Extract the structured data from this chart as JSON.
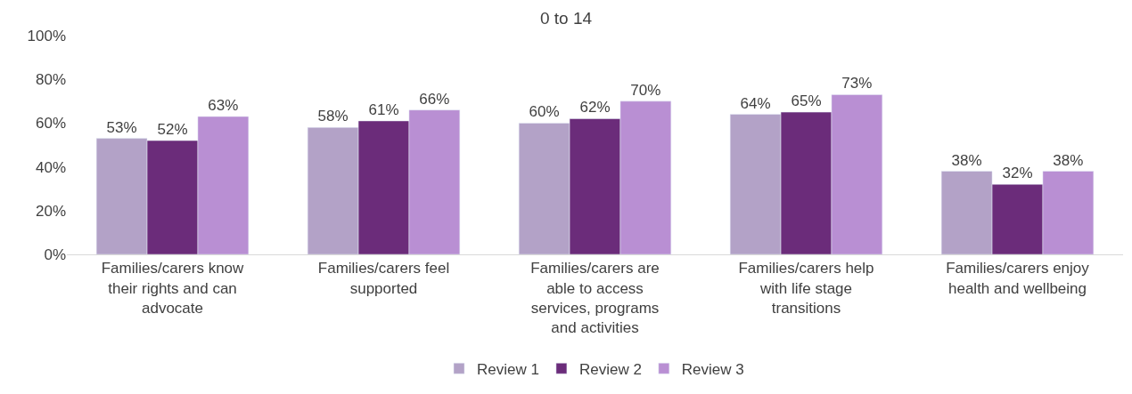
{
  "chart_data": {
    "type": "bar",
    "title": "0 to 14",
    "categories": [
      "Families/carers know their rights and can advocate",
      "Families/carers feel supported",
      "Families/carers are able to access services, programs and activities",
      "Families/carers help with life stage transitions",
      "Families/carers enjoy health and wellbeing"
    ],
    "series": [
      {
        "name": "Review 1",
        "color": "#b3a2c7",
        "values": [
          53,
          58,
          60,
          64,
          38
        ],
        "value_labels": [
          "53%",
          "58%",
          "60%",
          "64%",
          "38%"
        ]
      },
      {
        "name": "Review 2",
        "color": "#6b2c7a",
        "values": [
          52,
          61,
          62,
          65,
          32
        ],
        "value_labels": [
          "52%",
          "61%",
          "62%",
          "65%",
          "32%"
        ]
      },
      {
        "name": "Review 3",
        "color": "#b98fd3",
        "values": [
          63,
          66,
          70,
          73,
          38
        ],
        "value_labels": [
          "63%",
          "66%",
          "70%",
          "73%",
          "38%"
        ]
      }
    ],
    "ylim": [
      0,
      100
    ],
    "yticks": [
      {
        "value": 0,
        "label": "0%"
      },
      {
        "value": 20,
        "label": "20%"
      },
      {
        "value": 40,
        "label": "40%"
      },
      {
        "value": 60,
        "label": "60%"
      },
      {
        "value": 80,
        "label": "80%"
      },
      {
        "value": 100,
        "label": "100%"
      }
    ],
    "grid": false,
    "legend": "bottom"
  }
}
